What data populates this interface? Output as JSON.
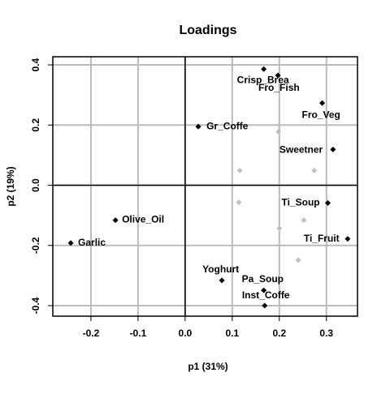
{
  "chart_data": {
    "type": "scatter",
    "title": "Loadings",
    "x_label": "p1 (31%)",
    "y_label": "p2 (19%)",
    "xlim": [
      -0.281,
      0.366
    ],
    "ylim": [
      -0.435,
      0.427
    ],
    "xticks": [
      -0.2,
      -0.1,
      {
        "value": 0,
        "label": "0.0"
      },
      0.1,
      0.2,
      0.3
    ],
    "yticks": [
      -0.4,
      -0.2,
      {
        "value": 0,
        "label": "0.0"
      },
      0.2,
      0.4
    ],
    "grid": true,
    "zero_lines": true,
    "series": [
      {
        "color": "#000000",
        "labels": [
          "Crisp_Brea",
          "Fro_Fish",
          "Fro_Veg",
          "Gr_Coffe",
          "Sweetner",
          "Ti_Soup",
          "Olive_Oil",
          "Garlic",
          "Ti_Fruit",
          "Yoghurt",
          "Pa_Soup",
          "Inst_Coffe"
        ],
        "x": [
          0.167,
          0.197,
          0.291,
          0.028,
          0.314,
          0.303,
          -0.148,
          -0.243,
          0.345,
          0.078,
          0.167,
          0.169
        ],
        "values": [
          0.386,
          0.365,
          0.273,
          0.195,
          0.119,
          -0.059,
          -0.116,
          -0.192,
          -0.178,
          -0.316,
          -0.349,
          -0.4
        ]
      },
      {
        "color": "#c0c0c0",
        "x": [
          0.198,
          0.116,
          0.274,
          0.114,
          0.252,
          0.2,
          0.24
        ],
        "values": [
          0.178,
          0.049,
          0.049,
          -0.057,
          -0.116,
          -0.143,
          -0.249
        ]
      }
    ]
  }
}
